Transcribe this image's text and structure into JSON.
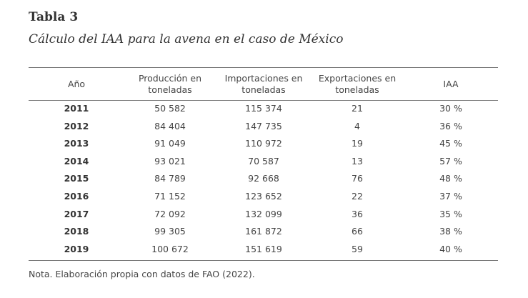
{
  "header": {
    "title": "Tabla 3",
    "subtitle": "Cálculo del IAA para la avena en el caso de México"
  },
  "table": {
    "columns": [
      [
        "Año"
      ],
      [
        "Producción en",
        "toneladas"
      ],
      [
        "Importaciones en",
        "toneladas"
      ],
      [
        "Exportaciones en",
        "toneladas"
      ],
      [
        "IAA"
      ]
    ],
    "rows": [
      [
        "2011",
        "50 582",
        "115 374",
        "21",
        "30 %"
      ],
      [
        "2012",
        "84 404",
        "147 735",
        "4",
        "36 %"
      ],
      [
        "2013",
        "91 049",
        "110 972",
        "19",
        "45 %"
      ],
      [
        "2014",
        "93 021",
        "70 587",
        "13",
        "57 %"
      ],
      [
        "2015",
        "84 789",
        "92 668",
        "76",
        "48 %"
      ],
      [
        "2016",
        "71 152",
        "123 652",
        "22",
        "37 %"
      ],
      [
        "2017",
        "72 092",
        "132 099",
        "36",
        "35 %"
      ],
      [
        "2018",
        "99 305",
        "161 872",
        "66",
        "38 %"
      ],
      [
        "2019",
        "100 672",
        "151 619",
        "59",
        "40 %"
      ]
    ]
  },
  "note": "Nota. Elaboración propia con datos de FAO (2022)."
}
